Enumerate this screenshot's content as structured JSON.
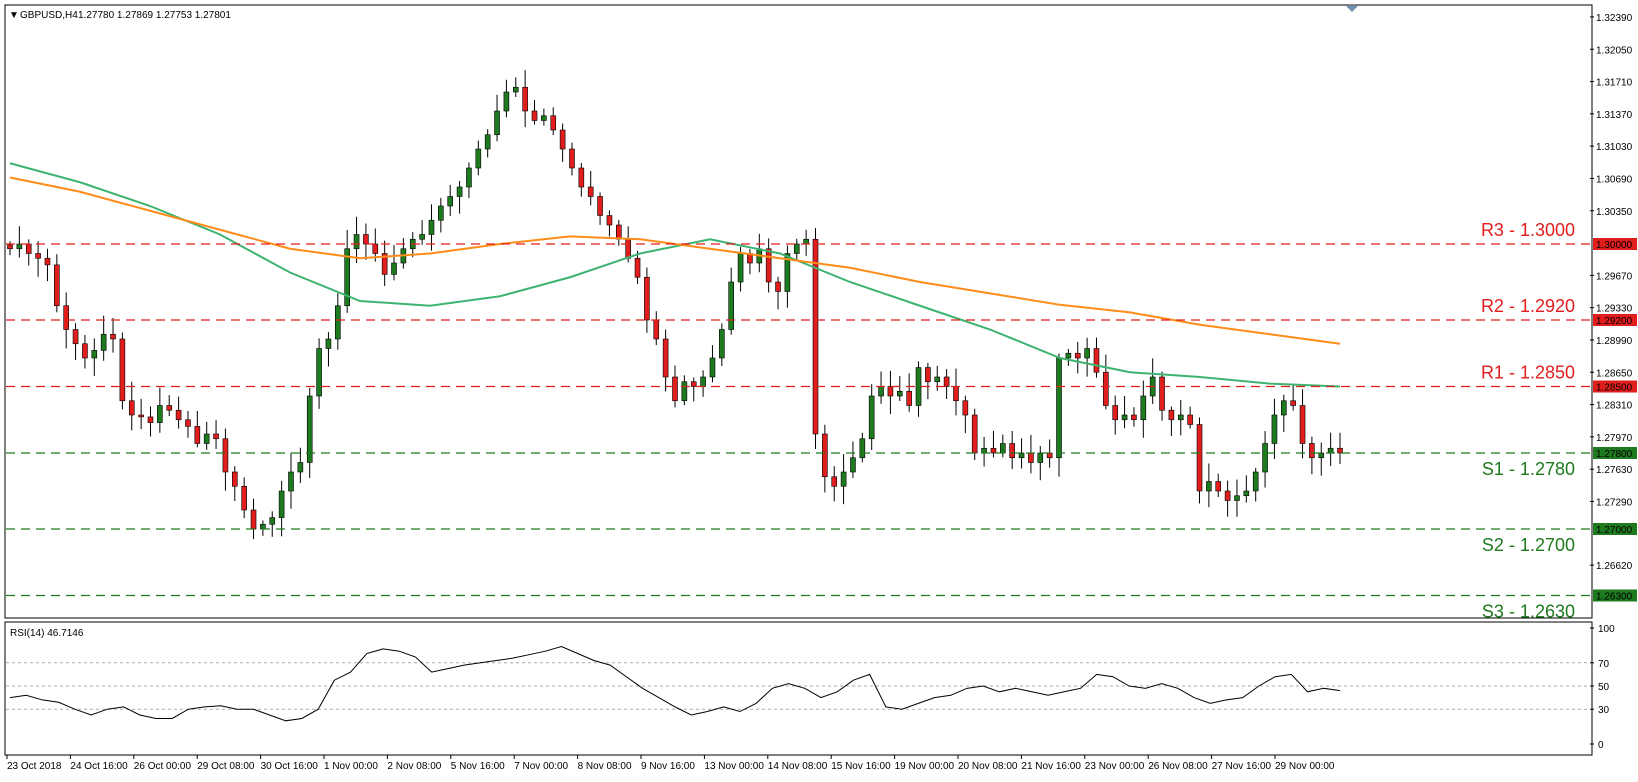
{
  "header": {
    "symbol": "GBPUSD,H4",
    "ohlc": "1.27780 1.27869 1.27753 1.27801"
  },
  "rsi_header": "RSI(14) 46.7146",
  "colors": {
    "bull": "#1e7a1e",
    "bear": "#e01e1e",
    "resistance": "#e01e1e",
    "support": "#1e7a1e",
    "ma_fast": "#3cb371",
    "ma_slow": "#ff8c1a",
    "rsi_line": "#000000",
    "axis": "#000000"
  },
  "chart_data": [
    {
      "type": "candlestick",
      "title": "GBPUSD,H4",
      "ylim": [
        1.2595,
        1.3265
      ],
      "y_ticks": [
        "1.32390",
        "1.32050",
        "1.31710",
        "1.31370",
        "1.31030",
        "1.30690",
        "1.30350",
        "1.29670",
        "1.29330",
        "1.28990",
        "1.28650",
        "1.28310",
        "1.27970",
        "1.27630",
        "1.27290",
        "1.26620"
      ],
      "x_ticks": [
        "23 Oct 2018",
        "24 Oct 16:00",
        "26 Oct 00:00",
        "29 Oct 08:00",
        "30 Oct 16:00",
        "1 Nov 00:00",
        "2 Nov 08:00",
        "5 Nov 16:00",
        "7 Nov 00:00",
        "8 Nov 08:00",
        "9 Nov 16:00",
        "13 Nov 00:00",
        "14 Nov 08:00",
        "15 Nov 16:00",
        "19 Nov 00:00",
        "20 Nov 08:00",
        "21 Nov 16:00",
        "23 Nov 00:00",
        "26 Nov 08:00",
        "27 Nov 16:00",
        "29 Nov 00:00"
      ],
      "levels": [
        {
          "label": "R3 - 1.3000",
          "value": 1.3,
          "tag": "1.30000",
          "kind": "resistance"
        },
        {
          "label": "R2 - 1.2920",
          "value": 1.292,
          "tag": "1.29200",
          "kind": "resistance"
        },
        {
          "label": "R1 - 1.2850",
          "value": 1.285,
          "tag": "1.28500",
          "kind": "resistance"
        },
        {
          "label": "S1 - 1.2780",
          "value": 1.278,
          "tag": "1.27800",
          "kind": "support"
        },
        {
          "label": "S2 - 1.2700",
          "value": 1.27,
          "tag": "1.27000",
          "kind": "support"
        },
        {
          "label": "S3 - 1.2630",
          "value": 1.263,
          "tag": "1.26300",
          "kind": "support"
        }
      ],
      "close_path": [
        1.2995,
        1.3,
        1.299,
        1.2985,
        1.2978,
        1.2935,
        1.291,
        1.2895,
        1.288,
        1.2888,
        1.2905,
        1.29,
        1.2835,
        1.282,
        1.2818,
        1.2812,
        1.283,
        1.2825,
        1.2815,
        1.2808,
        1.279,
        1.28,
        1.2795,
        1.276,
        1.2745,
        1.272,
        1.27,
        1.2705,
        1.2712,
        1.274,
        1.276,
        1.277,
        1.284,
        1.289,
        1.29,
        1.2935,
        1.2995,
        1.301,
        1.3,
        1.299,
        1.2968,
        1.298,
        1.2995,
        1.3005,
        1.301,
        1.3025,
        1.304,
        1.305,
        1.306,
        1.308,
        1.31,
        1.3115,
        1.314,
        1.316,
        1.3165,
        1.314,
        1.313,
        1.3135,
        1.312,
        1.31,
        1.308,
        1.306,
        1.305,
        1.303,
        1.302,
        1.3005,
        1.2985,
        1.2965,
        1.292,
        1.29,
        1.286,
        1.2835,
        1.2855,
        1.285,
        1.286,
        1.288,
        1.291,
        1.296,
        1.299,
        1.298,
        1.2995,
        1.296,
        1.295,
        1.299,
        1.3,
        1.3005,
        1.28,
        1.2755,
        1.2745,
        1.276,
        1.2775,
        1.2795,
        1.284,
        1.285,
        1.284,
        1.2845,
        1.283,
        1.287,
        1.2855,
        1.286,
        1.285,
        1.2835,
        1.282,
        1.278,
        1.2785,
        1.278,
        1.279,
        1.2775,
        1.278,
        1.277,
        1.278,
        1.2775,
        1.288,
        1.2885,
        1.288,
        1.289,
        1.2865,
        1.283,
        1.2815,
        1.282,
        1.2815,
        1.284,
        1.286,
        1.2825,
        1.2815,
        1.282,
        1.281,
        1.274,
        1.275,
        1.274,
        1.273,
        1.2735,
        1.274,
        1.276,
        1.279,
        1.282,
        1.2835,
        1.283,
        1.279,
        1.2775,
        1.278,
        1.2785,
        1.278
      ],
      "series": [
        {
          "name": "MA fast",
          "role": "green moving average",
          "values": [
            1.3085,
            1.3065,
            1.304,
            1.301,
            1.297,
            1.294,
            1.2935,
            1.2945,
            1.2965,
            1.299,
            1.3005,
            1.299,
            1.296,
            1.2935,
            1.291,
            1.288,
            1.2865,
            1.286,
            1.2853,
            1.285
          ]
        },
        {
          "name": "MA slow",
          "role": "orange moving average",
          "values": [
            1.307,
            1.3055,
            1.3035,
            1.3015,
            1.2995,
            1.2985,
            1.299,
            1.3,
            1.3008,
            1.3005,
            1.2995,
            1.2985,
            1.2975,
            1.296,
            1.2948,
            1.2936,
            1.2928,
            1.2915,
            1.2905,
            1.2895
          ]
        }
      ]
    },
    {
      "type": "line",
      "title": "RSI(14) 46.7146",
      "ylim": [
        0,
        100
      ],
      "y_ticks": [
        100,
        70,
        50,
        30,
        0
      ],
      "guides": [
        70,
        50,
        30
      ],
      "series": [
        {
          "name": "RSI(14)",
          "values": [
            40,
            42,
            38,
            36,
            30,
            25,
            30,
            32,
            25,
            22,
            22,
            30,
            32,
            33,
            30,
            30,
            25,
            20,
            22,
            30,
            55,
            62,
            78,
            82,
            80,
            75,
            62,
            65,
            68,
            70,
            72,
            74,
            77,
            80,
            84,
            78,
            72,
            68,
            58,
            48,
            40,
            32,
            25,
            28,
            32,
            28,
            35,
            48,
            52,
            48,
            40,
            45,
            55,
            60,
            32,
            30,
            35,
            40,
            42,
            48,
            50,
            45,
            48,
            45,
            42,
            45,
            48,
            60,
            58,
            50,
            48,
            52,
            48,
            40,
            35,
            38,
            40,
            50,
            58,
            60,
            45,
            48,
            46
          ]
        }
      ]
    }
  ]
}
